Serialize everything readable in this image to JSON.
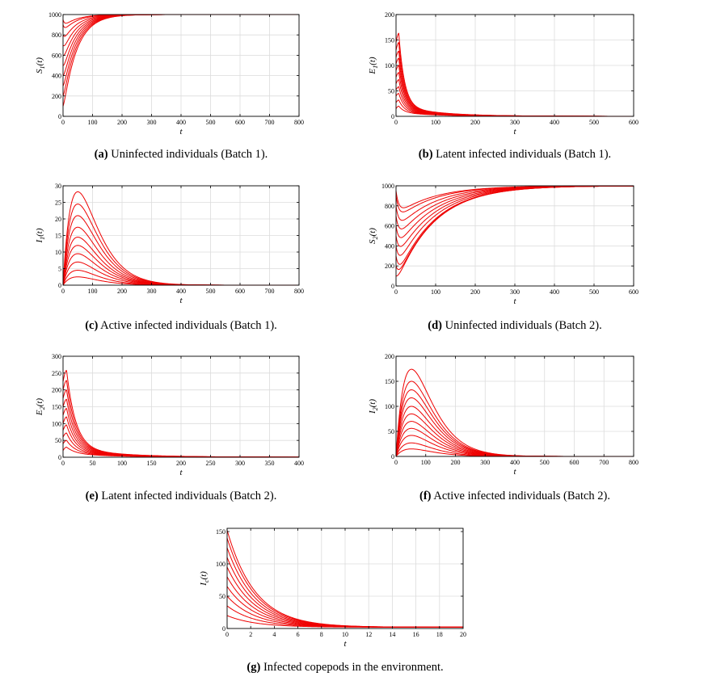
{
  "figure": {
    "curve_color": "#ee0000",
    "axis_color": "#000000",
    "grid_color": "#dcdcdc"
  },
  "chart_data": [
    {
      "id": "a",
      "type": "line",
      "title": "(a) Uninfected individuals (Batch 1).",
      "caption_label": "(a)",
      "caption_text": "Uninfected individuals (Batch 1).",
      "ylabel": "S₁(t)",
      "ylabel_main": "S",
      "ylabel_sub": "1",
      "ylabel_tail": "(t)",
      "xlabel": "t",
      "xlim": [
        0,
        800
      ],
      "ylim": [
        0,
        1000
      ],
      "xticks": [
        0,
        100,
        200,
        300,
        400,
        500,
        600,
        700,
        800
      ],
      "yticks": [
        0,
        200,
        400,
        600,
        800,
        1000
      ],
      "xtick_labels": [
        "0",
        "100",
        "200",
        "300",
        "400",
        "500",
        "600",
        "700",
        "800"
      ],
      "ytick_labels": [
        "0",
        "200",
        "400",
        "600",
        "800",
        "1000"
      ],
      "family": {
        "kind": "rise",
        "initial": [
          100,
          200,
          300,
          400,
          500,
          600,
          700,
          800,
          900,
          950
        ],
        "dip": 70,
        "dip_t": 6,
        "target": 1000,
        "rate": 0.022
      },
      "series_count": 10
    },
    {
      "id": "b",
      "type": "line",
      "title": "(b) Latent infected individuals (Batch 1).",
      "caption_label": "(b)",
      "caption_text": "Latent infected individuals (Batch 1).",
      "ylabel": "E₁(t)",
      "ylabel_main": "E",
      "ylabel_sub": "1",
      "ylabel_tail": "(t)",
      "xlabel": "t",
      "xlim": [
        0,
        600
      ],
      "ylim": [
        0,
        200
      ],
      "xticks": [
        0,
        100,
        200,
        300,
        400,
        500,
        600
      ],
      "yticks": [
        0,
        50,
        100,
        150,
        200
      ],
      "xtick_labels": [
        "0",
        "100",
        "200",
        "300",
        "400",
        "500",
        "600"
      ],
      "ytick_labels": [
        "0",
        "50",
        "100",
        "150",
        "200"
      ],
      "family": {
        "kind": "latent",
        "initial": [
          15,
          27,
          40,
          52,
          64,
          77,
          90,
          103,
          116,
          130,
          145
        ],
        "peaks": [
          20,
          32,
          45,
          58,
          72,
          86,
          100,
          114,
          128,
          145,
          163
        ],
        "peak_t": 7,
        "tail_amp": 20,
        "tail_rate": 0.01,
        "rate": 0.07
      },
      "series_count": 11
    },
    {
      "id": "c",
      "type": "line",
      "title": "(c) Active infected individuals (Batch 1).",
      "caption_label": "(c)",
      "caption_text": "Active infected individuals (Batch 1).",
      "ylabel": "I₁(t)",
      "ylabel_main": "I",
      "ylabel_sub": "1",
      "ylabel_tail": "(t)",
      "xlabel": "t",
      "xlim": [
        0,
        800
      ],
      "ylim": [
        0,
        30
      ],
      "xticks": [
        0,
        100,
        200,
        300,
        400,
        500,
        600,
        700,
        800
      ],
      "yticks": [
        0,
        5,
        10,
        15,
        20,
        25,
        30
      ],
      "xtick_labels": [
        "0",
        "100",
        "200",
        "300",
        "400",
        "500",
        "600",
        "700",
        "800"
      ],
      "ytick_labels": [
        "0",
        "5",
        "10",
        "15",
        "20",
        "25",
        "30"
      ],
      "family": {
        "kind": "hump",
        "peaks": [
          2.5,
          4.5,
          7,
          9.5,
          12,
          14.5,
          17.5,
          21,
          24.5,
          28.2
        ],
        "peak_t": 50
      },
      "series_count": 10
    },
    {
      "id": "d",
      "type": "line",
      "title": "(d) Uninfected individuals (Batch 2).",
      "caption_label": "(d)",
      "caption_text": "Uninfected individuals (Batch 2).",
      "ylabel": "S₂(t)",
      "ylabel_main": "S",
      "ylabel_sub": "2",
      "ylabel_tail": "(t)",
      "xlabel": "t",
      "xlim": [
        0,
        600
      ],
      "ylim": [
        0,
        1000
      ],
      "xticks": [
        0,
        100,
        200,
        300,
        400,
        500,
        600
      ],
      "yticks": [
        0,
        200,
        400,
        600,
        800,
        1000
      ],
      "xtick_labels": [
        "0",
        "100",
        "200",
        "300",
        "400",
        "500",
        "600"
      ],
      "ytick_labels": [
        "0",
        "200",
        "400",
        "600",
        "800",
        "1000"
      ],
      "family": {
        "kind": "rise",
        "initial": [
          100,
          200,
          300,
          400,
          500,
          600,
          700,
          800,
          900,
          950
        ],
        "dip": 240,
        "dip_t": 8,
        "target": 1000,
        "rate": 0.0105
      },
      "series_count": 10
    },
    {
      "id": "e",
      "type": "line",
      "title": "(e) Latent infected individuals (Batch 2).",
      "caption_label": "(e)",
      "caption_text": "Latent infected individuals (Batch 2).",
      "ylabel": "E₂(t)",
      "ylabel_main": "E",
      "ylabel_sub": "2",
      "ylabel_tail": "(t)",
      "xlabel": "t",
      "xlim": [
        0,
        400
      ],
      "ylim": [
        0,
        300
      ],
      "xticks": [
        0,
        50,
        100,
        150,
        200,
        250,
        300,
        350,
        400
      ],
      "yticks": [
        0,
        50,
        100,
        150,
        200,
        250,
        300
      ],
      "xtick_labels": [
        "0",
        "50",
        "100",
        "150",
        "200",
        "250",
        "300",
        "350",
        "400"
      ],
      "ytick_labels": [
        "0",
        "50",
        "100",
        "150",
        "200",
        "250",
        "300"
      ],
      "family": {
        "kind": "latent",
        "initial": [
          20,
          40,
          60,
          80,
          100,
          125,
          150,
          175,
          200,
          225
        ],
        "peaks": [
          30,
          50,
          72,
          96,
          120,
          145,
          172,
          200,
          228,
          258
        ],
        "peak_t": 6,
        "tail_amp": 28,
        "tail_rate": 0.012,
        "rate": 0.065
      },
      "series_count": 10
    },
    {
      "id": "f",
      "type": "line",
      "title": "(f) Active infected individuals (Batch 2).",
      "caption_label": "(f)",
      "caption_text": "Active infected individuals (Batch 2).",
      "ylabel": "I₂(t)",
      "ylabel_main": "I",
      "ylabel_sub": "2",
      "ylabel_tail": "(t)",
      "xlabel": "t",
      "xlim": [
        0,
        800
      ],
      "ylim": [
        0,
        200
      ],
      "xticks": [
        0,
        100,
        200,
        300,
        400,
        500,
        600,
        700,
        800
      ],
      "yticks": [
        0,
        50,
        100,
        150,
        200
      ],
      "xtick_labels": [
        "0",
        "100",
        "200",
        "300",
        "400",
        "500",
        "600",
        "700",
        "800"
      ],
      "ytick_labels": [
        "0",
        "50",
        "100",
        "150",
        "200"
      ],
      "family": {
        "kind": "hump",
        "peaks": [
          15,
          27,
          42,
          56,
          70,
          85,
          100,
          117,
          133,
          150,
          174
        ],
        "peak_t": 52
      },
      "series_count": 11
    },
    {
      "id": "g",
      "type": "line",
      "title": "(g) Infected copepods in the environment.",
      "caption_label": "(g)",
      "caption_text": "Infected copepods in the environment.",
      "ylabel": "I_c(t)",
      "ylabel_main": "I",
      "ylabel_sub": "c",
      "ylabel_tail": "(t)",
      "xlabel": "t",
      "xlim": [
        0,
        20
      ],
      "ylim": [
        0,
        155
      ],
      "xticks": [
        0,
        2,
        4,
        6,
        8,
        10,
        12,
        14,
        16,
        18,
        20
      ],
      "yticks": [
        0,
        50,
        100,
        150
      ],
      "xtick_labels": [
        "0",
        "2",
        "4",
        "6",
        "8",
        "10",
        "12",
        "14",
        "16",
        "18",
        "20"
      ],
      "ytick_labels": [
        "0",
        "50",
        "100",
        "150"
      ],
      "family": {
        "kind": "decay",
        "initial": [
          20,
          35,
          50,
          65,
          80,
          95,
          110,
          125,
          140,
          152
        ],
        "floor": 2,
        "rate": 0.42
      },
      "series_count": 10
    }
  ]
}
